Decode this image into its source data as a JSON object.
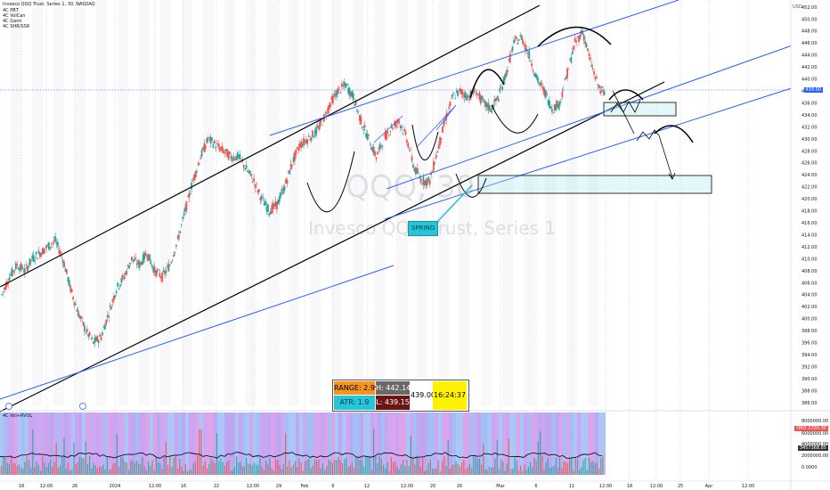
{
  "header": {
    "title": "Invesco QQQ Trust, Series 1, 30, NASDAQ",
    "indicators": [
      "4C PBT",
      "4C VolCan",
      "4C Gann",
      "4C SHR/SSR"
    ],
    "currency": "USD"
  },
  "watermark": {
    "symbol": "QQQ, 30",
    "name": "Invesco QQQ Trust, Series 1"
  },
  "stats_box": {
    "range": "RANGE: 2.99",
    "high": "H: 442.14",
    "last": "439.00",
    "time": "16:24:37",
    "atr": "ATR: 1.9",
    "low": "L: 439.15"
  },
  "annotation": {
    "spring": "SPRING"
  },
  "current_price": "439.00",
  "volume_pane": {
    "title": "4C Vol+RVOL",
    "tags": [
      "ORO 2330.30",
      "3457368.85"
    ],
    "y_ticks": [
      "8000000.00",
      "6000000.00",
      "4000000.00",
      "2000000.00",
      "0.0000"
    ]
  },
  "colors": {
    "up": "#26a69a",
    "down": "#ef5350",
    "channel_black": "#000000",
    "channel_blue": "#2962ff",
    "spring": "#26c6da"
  },
  "chart_data": {
    "type": "line",
    "title": "Invesco QQQ Trust, Series 1, 30, NASDAQ",
    "ylabel": "USD",
    "ylim": [
      386,
      452
    ],
    "y_ticks": [
      386,
      388,
      390,
      392,
      394,
      396,
      398,
      400,
      402,
      404,
      406,
      408,
      410,
      412,
      414,
      416,
      418,
      420,
      422,
      424,
      426,
      428,
      430,
      432,
      434,
      436,
      438,
      440,
      442,
      444,
      446,
      448,
      450,
      452
    ],
    "x_tick_labels": [
      "18",
      "12:00",
      "26",
      "2024",
      "12:00",
      "16",
      "22",
      "12:00",
      "29",
      "Feb",
      "6",
      "12",
      "12:00",
      "20",
      "26",
      "Mar",
      "6",
      "11",
      "12:00",
      "18",
      "12:00",
      "25",
      "Apr",
      "12:00"
    ],
    "series": [
      {
        "values": [
          404,
          407,
          409,
          408,
          410,
          411,
          412,
          413,
          410,
          405,
          401,
          398,
          396,
          397,
          401,
          405,
          407,
          410,
          409,
          411,
          408,
          407,
          409,
          413,
          418,
          423,
          427,
          430,
          429,
          428,
          427,
          427,
          425,
          423,
          420,
          418,
          419,
          422,
          426,
          429,
          430,
          431,
          433,
          436,
          438,
          439,
          437,
          433,
          430,
          427,
          430,
          432,
          433,
          430,
          425,
          423,
          423,
          428,
          433,
          437,
          438,
          437,
          438,
          436,
          435,
          437,
          441,
          446,
          447,
          444,
          440,
          438,
          435,
          436,
          441,
          446,
          448,
          443,
          439,
          437
        ]
      }
    ]
  }
}
